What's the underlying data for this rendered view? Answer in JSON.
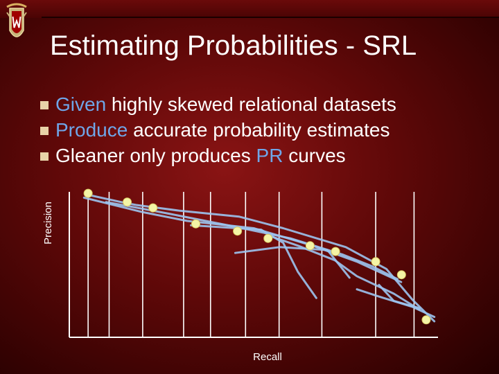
{
  "slide": {
    "title": "Estimating Probabilities - SRL",
    "bullets": [
      {
        "highlight": "Given",
        "rest": " highly skewed relational datasets"
      },
      {
        "highlight": "Produce",
        "rest": " accurate probability estimates"
      },
      {
        "lead": "Gleaner only produces ",
        "highlight": "PR",
        "rest": " curves"
      }
    ]
  },
  "colors": {
    "background": "#6a0a0a",
    "highlight": "#6fa6e8",
    "curve": "#9cc4f0",
    "point": "#f4f4a6",
    "bullet": "#e8d2a8"
  },
  "chart_data": {
    "type": "line",
    "xlabel": "Recall",
    "ylabel": "Precision",
    "grid": "vertical",
    "xlim": [
      0,
      1
    ],
    "ylim": [
      0,
      1
    ],
    "x_gridlines": [
      0.051,
      0.108,
      0.199,
      0.31,
      0.383,
      0.478,
      0.569,
      0.685,
      0.831,
      0.935
    ],
    "points": [
      [
        0.051,
        0.99
      ],
      [
        0.157,
        0.93
      ],
      [
        0.227,
        0.89
      ],
      [
        0.343,
        0.78
      ],
      [
        0.456,
        0.73
      ],
      [
        0.539,
        0.68
      ],
      [
        0.653,
        0.63
      ],
      [
        0.722,
        0.59
      ],
      [
        0.831,
        0.52
      ],
      [
        0.901,
        0.43
      ],
      [
        0.968,
        0.12
      ]
    ],
    "curves": [
      [
        [
          0.05,
          0.98
        ],
        [
          0.14,
          0.93
        ],
        [
          0.18,
          0.91
        ],
        [
          0.3,
          0.87
        ],
        [
          0.46,
          0.83
        ],
        [
          0.58,
          0.75
        ],
        [
          0.75,
          0.62
        ],
        [
          0.86,
          0.47
        ],
        [
          0.93,
          0.26
        ],
        [
          0.99,
          0.11
        ]
      ],
      [
        [
          0.04,
          0.96
        ],
        [
          0.2,
          0.86
        ],
        [
          0.32,
          0.8
        ],
        [
          0.5,
          0.75
        ],
        [
          0.66,
          0.63
        ],
        [
          0.78,
          0.52
        ],
        [
          0.9,
          0.38
        ]
      ],
      [
        [
          0.1,
          0.93
        ],
        [
          0.27,
          0.85
        ],
        [
          0.45,
          0.76
        ],
        [
          0.6,
          0.68
        ],
        [
          0.74,
          0.57
        ],
        [
          0.82,
          0.49
        ],
        [
          0.89,
          0.4
        ]
      ],
      [
        [
          0.33,
          0.77
        ],
        [
          0.52,
          0.74
        ],
        [
          0.58,
          0.65
        ],
        [
          0.62,
          0.45
        ],
        [
          0.67,
          0.27
        ]
      ],
      [
        [
          0.54,
          0.7
        ],
        [
          0.62,
          0.63
        ],
        [
          0.72,
          0.53
        ],
        [
          0.78,
          0.42
        ],
        [
          0.88,
          0.3
        ],
        [
          0.95,
          0.19
        ]
      ],
      [
        [
          0.45,
          0.58
        ],
        [
          0.57,
          0.62
        ],
        [
          0.7,
          0.6
        ],
        [
          0.76,
          0.41
        ]
      ],
      [
        [
          0.78,
          0.33
        ],
        [
          0.84,
          0.28
        ],
        [
          0.93,
          0.21
        ],
        [
          0.99,
          0.14
        ]
      ],
      [
        [
          0.84,
          0.36
        ],
        [
          0.88,
          0.25
        ],
        [
          0.95,
          0.2
        ]
      ]
    ]
  }
}
